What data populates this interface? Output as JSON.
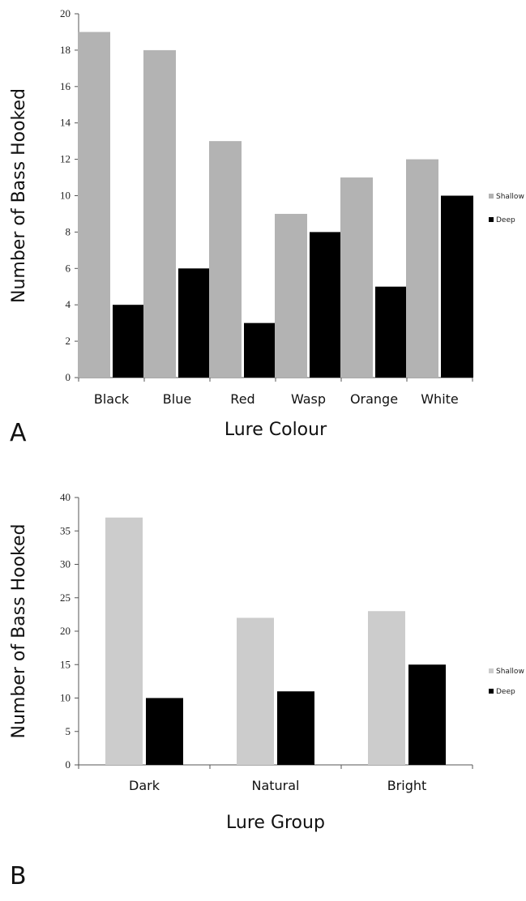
{
  "chart_data": [
    {
      "type": "bar",
      "panel_label": "A",
      "categories": [
        "Black",
        "Blue",
        "Red",
        "Wasp",
        "Orange",
        "White"
      ],
      "series": [
        {
          "name": "Shallow",
          "color": "#b3b3b3",
          "values": [
            19,
            18,
            13,
            9,
            11,
            12
          ]
        },
        {
          "name": "Deep",
          "color": "#000000",
          "values": [
            4,
            6,
            3,
            8,
            5,
            10
          ]
        }
      ],
      "xlabel": "Lure Colour",
      "ylabel": "Number of Bass Hooked",
      "ylim": [
        0,
        20
      ],
      "yticks": [
        0,
        2,
        4,
        6,
        8,
        10,
        12,
        14,
        16,
        18,
        20
      ],
      "grid": false,
      "legend_position": "right"
    },
    {
      "type": "bar",
      "panel_label": "B",
      "categories": [
        "Dark",
        "Natural",
        "Bright"
      ],
      "series": [
        {
          "name": "Shallow",
          "color": "#cccccc",
          "values": [
            37,
            22,
            23
          ]
        },
        {
          "name": "Deep",
          "color": "#000000",
          "values": [
            10,
            11,
            15
          ]
        }
      ],
      "xlabel": "Lure Group",
      "ylabel": "Number of Bass Hooked",
      "ylim": [
        0,
        40
      ],
      "yticks": [
        0,
        5,
        10,
        15,
        20,
        25,
        30,
        35,
        40
      ],
      "grid": false,
      "legend_position": "right"
    }
  ]
}
